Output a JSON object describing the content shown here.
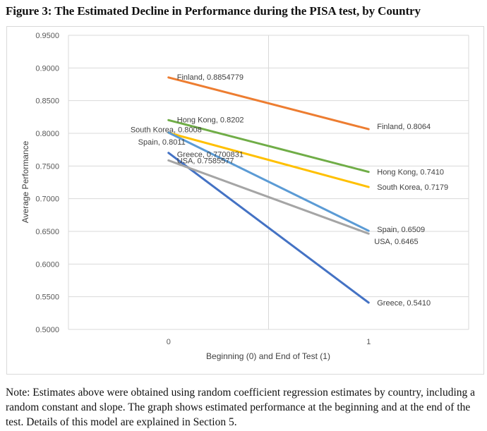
{
  "figure": {
    "title": "Figure 3: The Estimated Decline in Performance during the PISA test, by Country",
    "note": "Note: Estimates above were obtained using random coefficient regression estimates by country, including a random constant and slope. The graph shows estimated performance at the beginning and at the end of the test. Details of this model are explained in Section 5."
  },
  "chart_data": {
    "type": "line",
    "title": "Figure 3: The Estimated Decline in Performance during the PISA test, by Country",
    "xlabel": "Beginning (0) and End of Test (1)",
    "ylabel": "Average Performance",
    "x": [
      0,
      1
    ],
    "x_tick_labels": [
      "0",
      "1"
    ],
    "xlim": [
      -0.5,
      1.5
    ],
    "ylim": [
      0.5,
      0.95
    ],
    "y_ticks": [
      0.95,
      0.9,
      0.85,
      0.8,
      0.75,
      0.7,
      0.65,
      0.6,
      0.55,
      0.5
    ],
    "y_tick_labels": [
      "0.9500",
      "0.9000",
      "0.8500",
      "0.8000",
      "0.7500",
      "0.7000",
      "0.6500",
      "0.6000",
      "0.5500",
      "0.5000"
    ],
    "grid": true,
    "legend": "none (data labels at line ends)",
    "series": [
      {
        "name": "Finland",
        "values": [
          0.8854779,
          0.8064
        ],
        "color": "#ED7D31",
        "labels": [
          "Finland, 0.8854779",
          "Finland, 0.8064"
        ]
      },
      {
        "name": "Hong Kong",
        "values": [
          0.8202,
          0.741
        ],
        "color": "#70AD47",
        "labels": [
          "Hong Kong, 0.8202",
          "Hong Kong, 0.7410"
        ]
      },
      {
        "name": "South Korea",
        "values": [
          0.8008,
          0.7179
        ],
        "color": "#FFC000",
        "labels": [
          "South Korea, 0.8008",
          "South Korea, 0.7179"
        ]
      },
      {
        "name": "Spain",
        "values": [
          0.8011,
          0.6509
        ],
        "color": "#5B9BD5",
        "labels": [
          "Spain, 0.8011",
          "Spain, 0.6509"
        ]
      },
      {
        "name": "Greece",
        "values": [
          0.7700831,
          0.541
        ],
        "color": "#4472C4",
        "labels": [
          "Greece, 0.7700831",
          "Greece, 0.5410"
        ]
      },
      {
        "name": "USA",
        "values": [
          0.7585577,
          0.6465
        ],
        "color": "#A5A5A5",
        "labels": [
          "USA, 0.7585577",
          "USA, 0.6465"
        ]
      }
    ]
  }
}
